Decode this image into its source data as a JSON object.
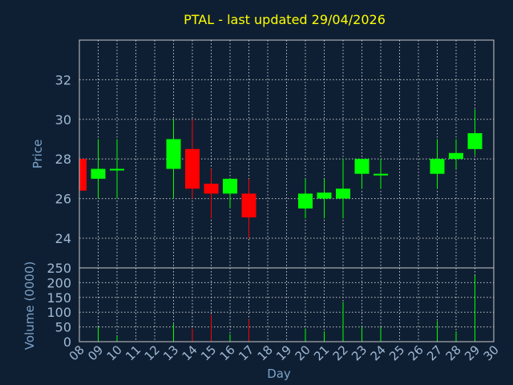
{
  "chart_data": {
    "type": "candlestick",
    "title": "PTAL - last updated 29/04/2026",
    "xlabel": "Day",
    "days": [
      "08",
      "09",
      "10",
      "11",
      "12",
      "13",
      "14",
      "15",
      "16",
      "17",
      "18",
      "19",
      "20",
      "21",
      "22",
      "23",
      "24",
      "25",
      "26",
      "27",
      "28",
      "29",
      "30"
    ],
    "price_panel": {
      "ylabel": "Price",
      "ylim": [
        22.5,
        34
      ],
      "yticks": [
        24,
        26,
        28,
        30,
        32
      ],
      "grid": true
    },
    "volume_panel": {
      "ylabel": "Volume (0000)",
      "ylim": [
        0,
        250
      ],
      "yticks": [
        0,
        50,
        100,
        150,
        200,
        250
      ],
      "grid": true
    },
    "colors": {
      "up": "#00ff00",
      "down": "#ff0000",
      "background": "#0f1f33"
    },
    "candles": [
      {
        "day": "08",
        "open": 28.0,
        "high": 28.0,
        "low": 26.4,
        "close": 26.4,
        "volume": 0
      },
      {
        "day": "09",
        "open": 27.0,
        "high": 29.0,
        "low": 26.0,
        "close": 27.5,
        "volume": 50
      },
      {
        "day": "10",
        "open": 27.45,
        "high": 29.0,
        "low": 26.0,
        "close": 27.5,
        "volume": 20
      },
      {
        "day": "13",
        "open": 27.5,
        "high": 30.0,
        "low": 26.0,
        "close": 29.0,
        "volume": 60
      },
      {
        "day": "14",
        "open": 28.5,
        "high": 30.0,
        "low": 26.0,
        "close": 26.5,
        "volume": 45
      },
      {
        "day": "15",
        "open": 26.75,
        "high": 27.5,
        "low": 25.0,
        "close": 26.25,
        "volume": 90
      },
      {
        "day": "16",
        "open": 26.25,
        "high": 27.0,
        "low": 25.5,
        "close": 27.0,
        "volume": 25
      },
      {
        "day": "17",
        "open": 26.25,
        "high": 27.0,
        "low": 24.0,
        "close": 25.05,
        "volume": 75
      },
      {
        "day": "20",
        "open": 25.5,
        "high": 27.0,
        "low": 25.0,
        "close": 26.25,
        "volume": 45
      },
      {
        "day": "21",
        "open": 26.0,
        "high": 27.0,
        "low": 25.0,
        "close": 26.3,
        "volume": 35
      },
      {
        "day": "22",
        "open": 26.0,
        "high": 28.0,
        "low": 25.0,
        "close": 26.5,
        "volume": 135
      },
      {
        "day": "23",
        "open": 27.25,
        "high": 28.0,
        "low": 26.5,
        "close": 28.0,
        "volume": 50
      },
      {
        "day": "24",
        "open": 27.2,
        "high": 28.0,
        "low": 26.5,
        "close": 27.25,
        "volume": 50
      },
      {
        "day": "27",
        "open": 27.25,
        "high": 29.0,
        "low": 26.5,
        "close": 28.0,
        "volume": 70
      },
      {
        "day": "28",
        "open": 28.0,
        "high": 29.0,
        "low": 27.5,
        "close": 28.3,
        "volume": 35
      },
      {
        "day": "29",
        "open": 28.5,
        "high": 30.5,
        "low": 28.2,
        "close": 29.3,
        "volume": 225
      }
    ]
  }
}
